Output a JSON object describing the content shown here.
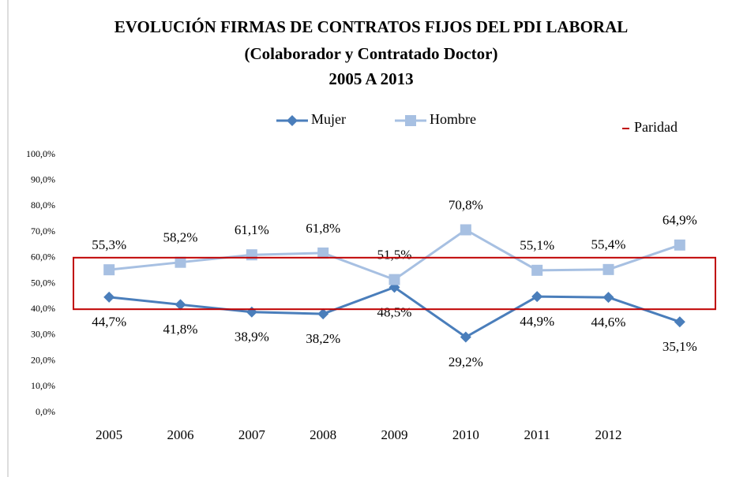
{
  "chart_data": {
    "type": "line",
    "title": "EVOLUCIÓN FIRMAS DE CONTRATOS FIJOS DEL PDI LABORAL",
    "subtitle": "(Colaborador y  Contratado Doctor)",
    "subtitle2": "2005 A 2013",
    "categories": [
      "2005",
      "2006",
      "2007",
      "2008",
      "2009",
      "2010",
      "2011",
      "2012",
      null
    ],
    "series": [
      {
        "name": "Mujer",
        "color": "#4a7ebb",
        "marker": "diamond",
        "values": [
          44.7,
          41.8,
          38.9,
          38.2,
          48.5,
          29.2,
          44.9,
          44.6,
          35.1
        ],
        "value_labels": [
          "44,7%",
          "41,8%",
          "38,9%",
          "38,2%",
          "48,5%",
          "29,2%",
          "44,9%",
          "44,6%",
          "35,1%"
        ]
      },
      {
        "name": "Hombre",
        "color": "#a7c0e2",
        "marker": "square",
        "values": [
          55.3,
          58.2,
          61.1,
          61.8,
          51.5,
          70.8,
          55.1,
          55.4,
          64.9
        ],
        "value_labels": [
          "55,3%",
          "58,2%",
          "61,1%",
          "61,8%",
          "51,5%",
          "70,8%",
          "55,1%",
          "55,4%",
          "64,9%"
        ]
      }
    ],
    "parity": {
      "name": "Paridad",
      "range": [
        40,
        60
      ],
      "color": "#c00000"
    },
    "ylim": [
      0,
      100
    ],
    "yticks": [
      {
        "value": 0,
        "label": "0,0%"
      },
      {
        "value": 10,
        "label": "10,0%"
      },
      {
        "value": 20,
        "label": "20,0%"
      },
      {
        "value": 30,
        "label": "30,0%"
      },
      {
        "value": 40,
        "label": "40,0%"
      },
      {
        "value": 50,
        "label": "50,0%"
      },
      {
        "value": 60,
        "label": "60,0%"
      },
      {
        "value": 70,
        "label": "70,0%"
      },
      {
        "value": 80,
        "label": "80,0%"
      },
      {
        "value": 90,
        "label": "90,0%"
      },
      {
        "value": 100,
        "label": "100,0%"
      }
    ],
    "grid": false
  }
}
